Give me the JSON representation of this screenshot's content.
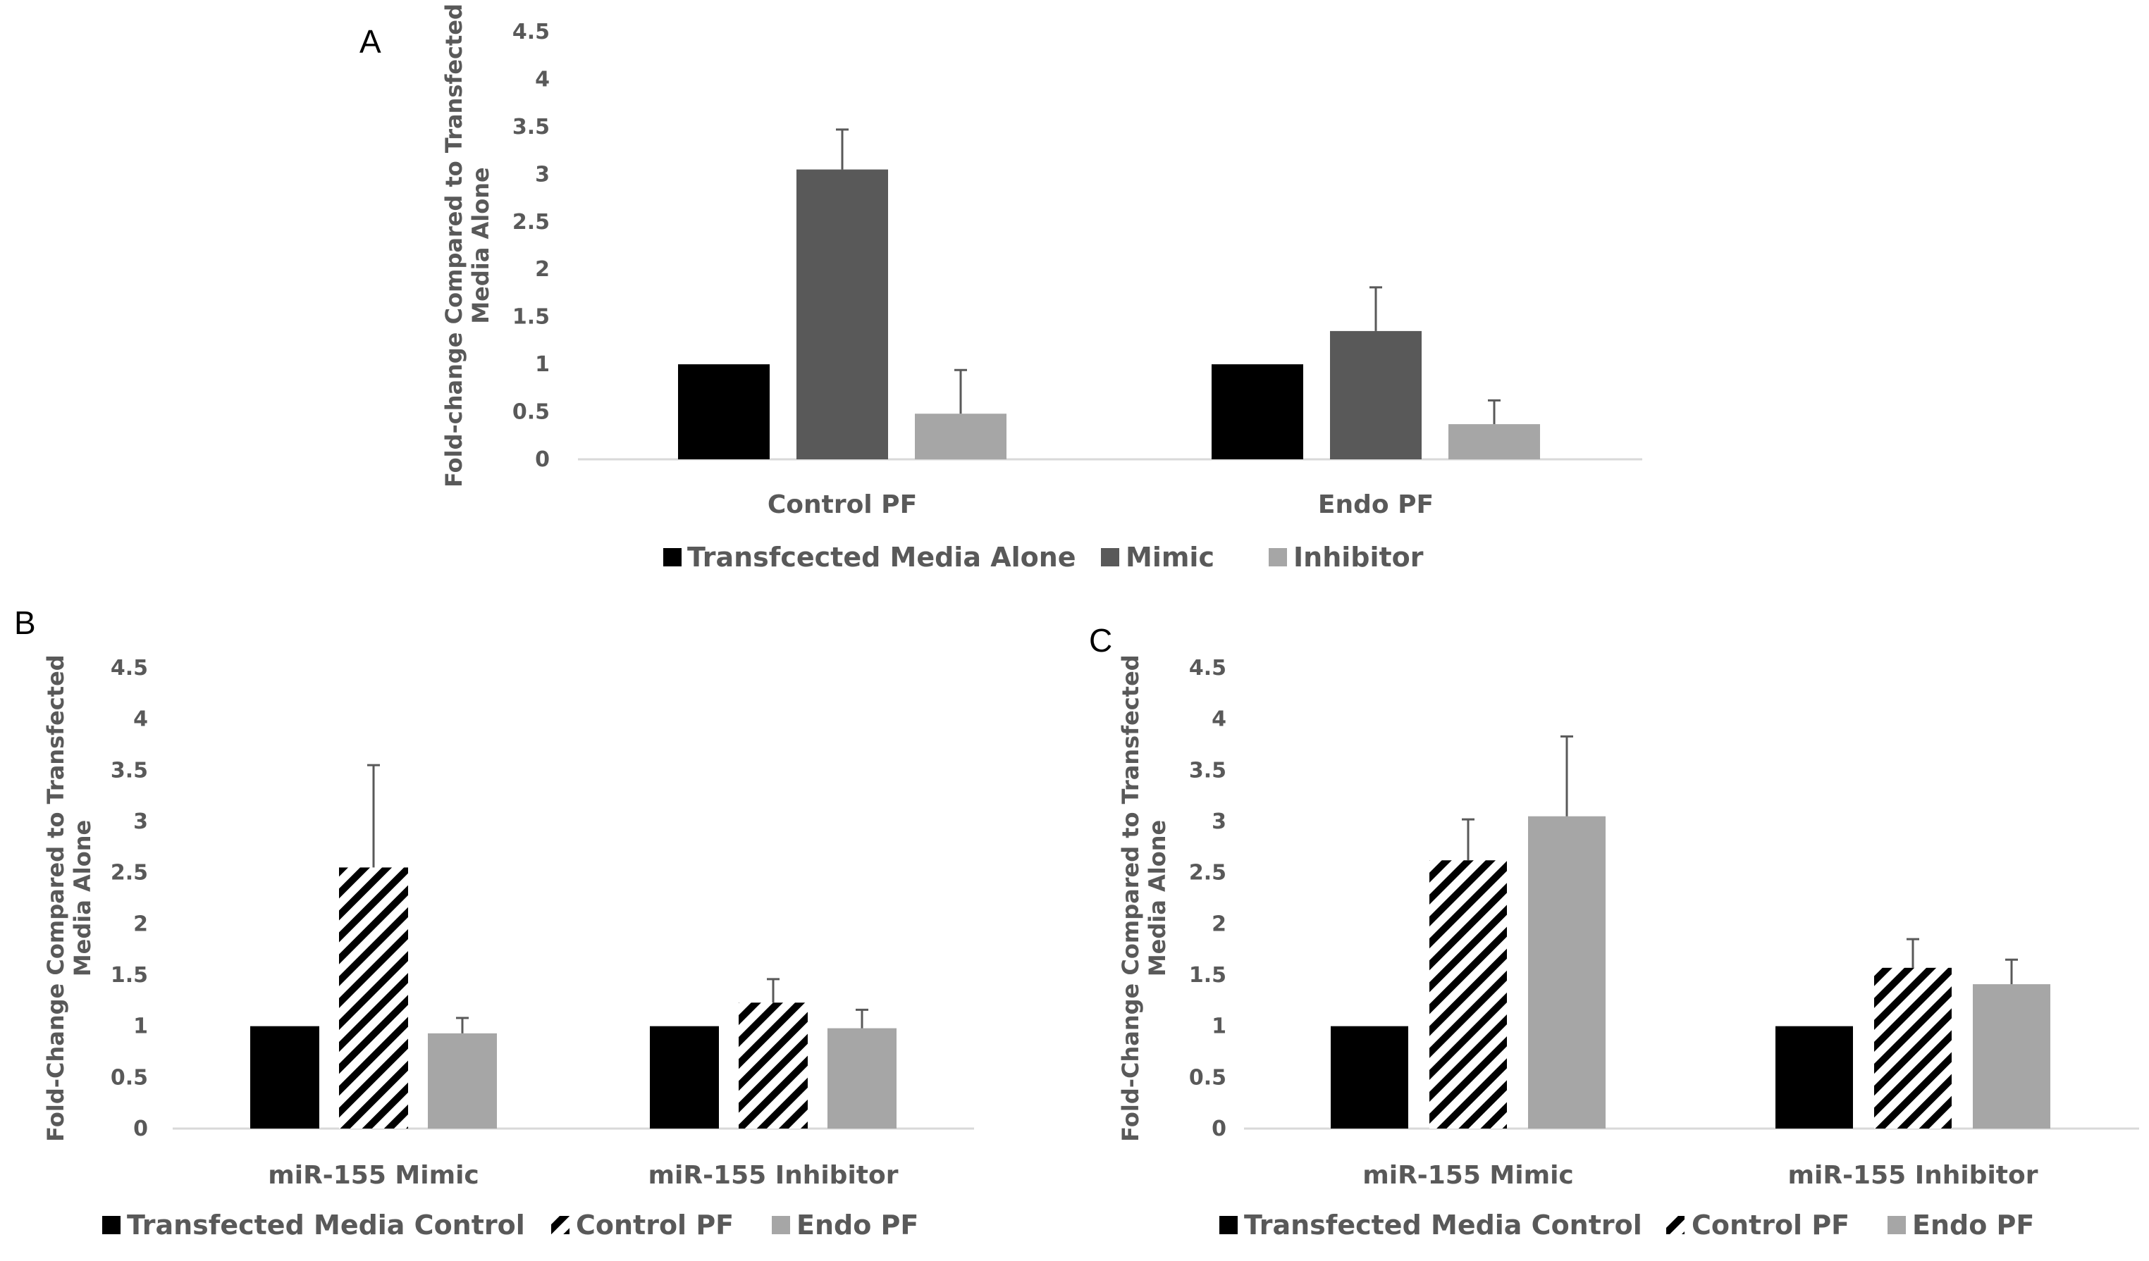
{
  "colors": {
    "black": "#000000",
    "dark_gray": "#595959",
    "light_gray": "#a6a6a6",
    "axis": "#d9d9d9",
    "error": "#595959"
  },
  "chart_data": [
    {
      "panel": "A",
      "type": "bar",
      "title": "",
      "ylabel": "Fold-change Compared to Transfected Media Alone",
      "xlabel": "",
      "ylim": [
        0,
        4.5
      ],
      "yticks": [
        "0",
        "0.5",
        "1",
        "1.5",
        "2",
        "2.5",
        "3",
        "3.5",
        "4",
        "4.5"
      ],
      "categories": [
        "Control PF",
        "Endo PF"
      ],
      "legend_position": "bottom",
      "series": [
        {
          "name": "Transfcected Media Alone",
          "style": "black",
          "values": [
            1,
            1
          ],
          "errors": [
            0,
            0
          ]
        },
        {
          "name": "Mimic",
          "style": "dark",
          "values": [
            3.05,
            1.35
          ],
          "errors": [
            0.42,
            0.46
          ]
        },
        {
          "name": "Inhibitor",
          "style": "light",
          "values": [
            0.48,
            0.37
          ],
          "errors": [
            0.46,
            0.25
          ]
        }
      ]
    },
    {
      "panel": "B",
      "type": "bar",
      "title": "",
      "ylabel": "Fold-Change Compared to Transfected Media Alone",
      "xlabel": "",
      "ylim": [
        0,
        4.5
      ],
      "yticks": [
        "0",
        "0.5",
        "1",
        "1.5",
        "2",
        "2.5",
        "3",
        "3.5",
        "4",
        "4.5"
      ],
      "categories": [
        "miR-155 Mimic",
        "miR-155 Inhibitor"
      ],
      "legend_position": "bottom",
      "series": [
        {
          "name": "Transfected Media Control",
          "style": "black",
          "values": [
            1,
            1
          ],
          "errors": [
            0,
            0
          ]
        },
        {
          "name": "Control PF",
          "style": "hatch",
          "values": [
            2.55,
            1.23
          ],
          "errors": [
            1.0,
            0.23
          ]
        },
        {
          "name": "Endo PF",
          "style": "light",
          "values": [
            0.93,
            0.98
          ],
          "errors": [
            0.15,
            0.18
          ]
        }
      ]
    },
    {
      "panel": "C",
      "type": "bar",
      "title": "",
      "ylabel": "Fold-Change Compared to Transfected Media Alone",
      "xlabel": "",
      "ylim": [
        0,
        4.5
      ],
      "yticks": [
        "0",
        "0.5",
        "1",
        "1.5",
        "2",
        "2.5",
        "3",
        "3.5",
        "4",
        "4.5"
      ],
      "categories": [
        "miR-155 Mimic",
        "miR-155 Inhibitor"
      ],
      "legend_position": "bottom",
      "series": [
        {
          "name": "Transfected Media Control",
          "style": "black",
          "values": [
            1,
            1
          ],
          "errors": [
            0,
            0
          ]
        },
        {
          "name": "Control PF",
          "style": "hatch",
          "values": [
            2.62,
            1.57
          ],
          "errors": [
            0.4,
            0.28
          ]
        },
        {
          "name": "Endo PF",
          "style": "light",
          "values": [
            3.05,
            1.41
          ],
          "errors": [
            0.78,
            0.24
          ]
        }
      ]
    }
  ]
}
